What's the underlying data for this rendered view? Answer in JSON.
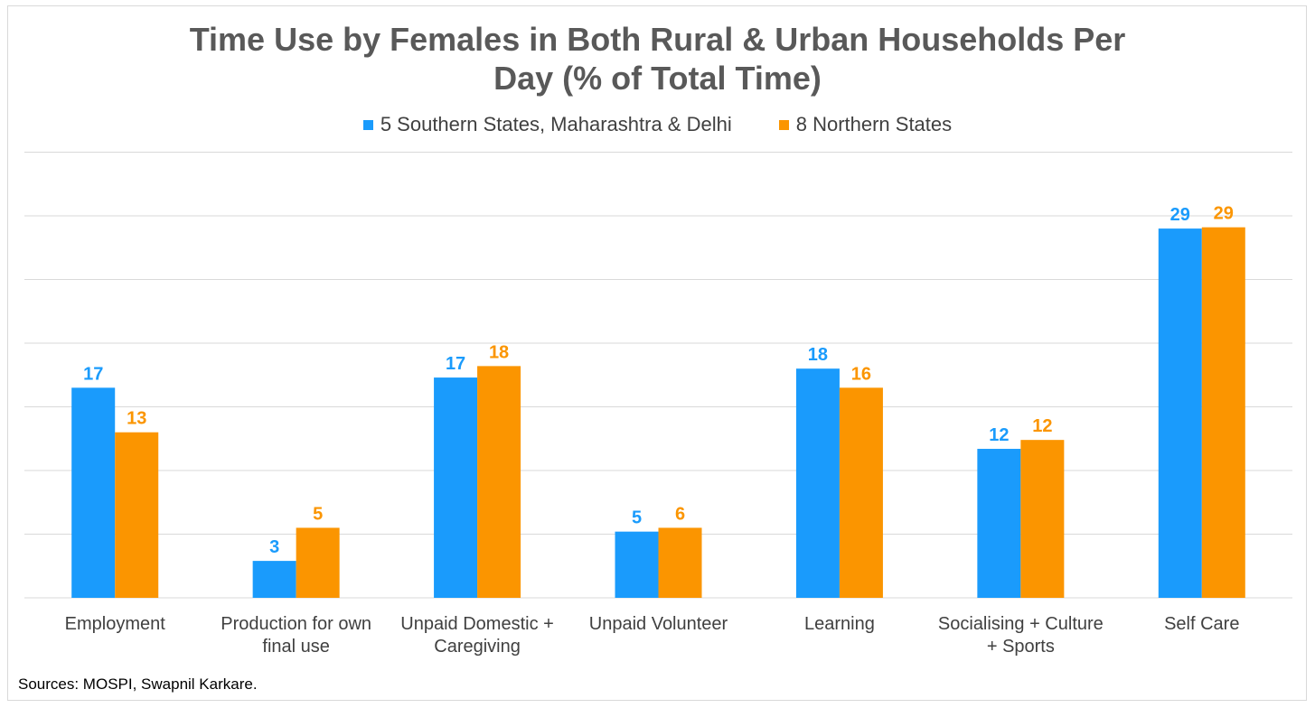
{
  "chart_data": {
    "type": "bar",
    "title": "Time Use by Females in Both Rural & Urban Households Per Day (% of Total Time)",
    "title_lines": [
      "Time Use by Females in Both Rural & Urban Households Per",
      "Day (% of Total Time)"
    ],
    "categories": [
      [
        "Employment"
      ],
      [
        "Production for own",
        "final use"
      ],
      [
        "Unpaid Domestic +",
        "Caregiving"
      ],
      [
        "Unpaid Volunteer"
      ],
      [
        "Learning"
      ],
      [
        "Socialising + Culture",
        "+ Sports"
      ],
      [
        "Self Care"
      ]
    ],
    "series": [
      {
        "name": "5 Southern States, Maharashtra & Delhi",
        "color": "#1a9bfc",
        "values": [
          16.5,
          2.9,
          17.3,
          5.2,
          18.0,
          11.7,
          29.0
        ],
        "labels": [
          "17",
          "3",
          "17",
          "5",
          "18",
          "12",
          "29"
        ]
      },
      {
        "name": "8 Northern States",
        "color": "#fb9500",
        "values": [
          13.0,
          5.5,
          18.2,
          5.5,
          16.5,
          12.4,
          29.1
        ],
        "labels": [
          "13",
          "5",
          "18",
          "6",
          "16",
          "12",
          "29"
        ]
      }
    ],
    "ylim": [
      0,
      35
    ],
    "grid": true,
    "legend_position": "top-center",
    "xlabel": "",
    "ylabel": ""
  },
  "source": "Sources: MOSPI, Swapnil Karkare.",
  "colors": {
    "title": "#595959",
    "gridline": "#d9d9d9",
    "axis_text": "#404040"
  }
}
